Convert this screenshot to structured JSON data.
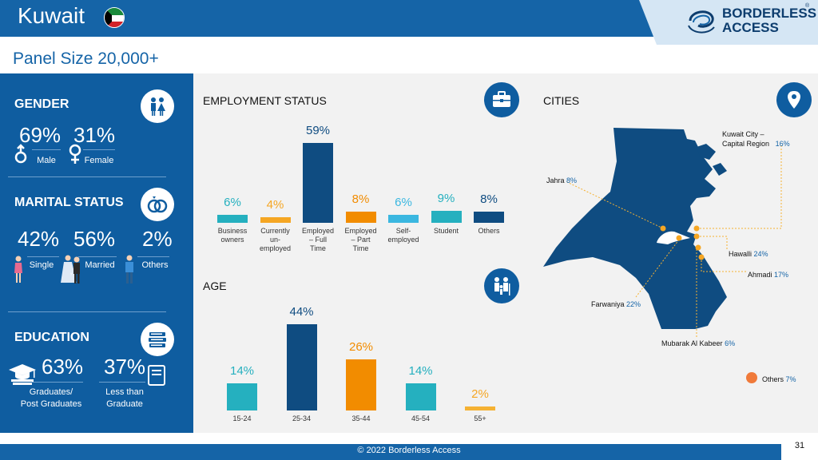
{
  "header": {
    "title": "Kuwait",
    "panel_size": "Panel Size 20,000+",
    "logo_line1": "BORDERLESS",
    "logo_line2": "ACCESS",
    "logo_reg": "®"
  },
  "gender": {
    "heading": "GENDER",
    "male_pct": "69%",
    "female_pct": "31%",
    "male_label": "Male",
    "female_label": "Female",
    "icon": "people-icon"
  },
  "marital": {
    "heading": "MARITAL STATUS",
    "single_pct": "42%",
    "married_pct": "56%",
    "others_pct": "2%",
    "single_label": "Single",
    "married_label": "Married",
    "married_extra": ",",
    "others_label": "Others",
    "icon": "rings-icon"
  },
  "education": {
    "heading": "EDUCATION",
    "grad_pct": "63%",
    "less_pct": "37%",
    "grad_label_1": "Graduates/",
    "grad_label_2": "Post Graduates",
    "less_label_1": "Less than",
    "less_label_2": "Graduate",
    "icon": "books-icon"
  },
  "employment": {
    "heading": "EMPLOYMENT STATUS",
    "icon": "briefcase-icon",
    "chart_data": {
      "type": "bar",
      "categories": [
        [
          "Business",
          "owners"
        ],
        [
          "Currently",
          "un-",
          "employed"
        ],
        [
          "Employed",
          "– Full",
          "Time"
        ],
        [
          "Employed",
          "– Part",
          "Time"
        ],
        [
          "Self-",
          "employed"
        ],
        [
          "Student"
        ],
        [
          "Others"
        ]
      ],
      "values": [
        6,
        4,
        59,
        8,
        6,
        9,
        8
      ],
      "labels": [
        "6%",
        "4%",
        "59%",
        "8%",
        "6%",
        "9%",
        "8%"
      ],
      "colors": [
        "#25b0bf",
        "#f5a623",
        "#0f4c81",
        "#f28c00",
        "#3bb7e0",
        "#25b0bf",
        "#0f4c81"
      ],
      "label_colors": [
        "#25b0bf",
        "#f5a623",
        "#0f4c81",
        "#f28c00",
        "#3bb7e0",
        "#25b0bf",
        "#0f4c81"
      ]
    }
  },
  "age": {
    "heading": "AGE",
    "icon": "family-icon",
    "chart_data": {
      "type": "bar",
      "categories": [
        "15-24",
        "25-34",
        "35-44",
        "45-54",
        "55+"
      ],
      "values": [
        14,
        44,
        26,
        14,
        2
      ],
      "labels": [
        "14%",
        "44%",
        "26%",
        "14%",
        "2%"
      ],
      "colors": [
        "#25b0bf",
        "#0f4c81",
        "#f28c00",
        "#25b0bf",
        "#f5b233"
      ],
      "label_colors": [
        "#25b0bf",
        "#0f4c81",
        "#f28c00",
        "#25b0bf",
        "#f5a623"
      ]
    }
  },
  "cities": {
    "heading": "CITIES",
    "icon": "location-pin-icon",
    "items": [
      {
        "name_1": "Kuwait City –",
        "name_2": "Capital Region",
        "pct": "16%"
      },
      {
        "name": "Jahra",
        "pct": "8%"
      },
      {
        "name": "Hawalli",
        "pct": "24%"
      },
      {
        "name": "Ahmadi",
        "pct": "17%"
      },
      {
        "name": "Farwaniya",
        "pct": "22%"
      },
      {
        "name": "Mubarak Al Kabeer",
        "pct": "6%"
      },
      {
        "name": "Others",
        "pct": "7%"
      }
    ],
    "colors": {
      "map": "#0f4c81",
      "dot": "#f5a623",
      "others_dot": "#f07a3a"
    }
  },
  "footer": {
    "copyright": "© 2022 Borderless Access",
    "page": "31"
  }
}
